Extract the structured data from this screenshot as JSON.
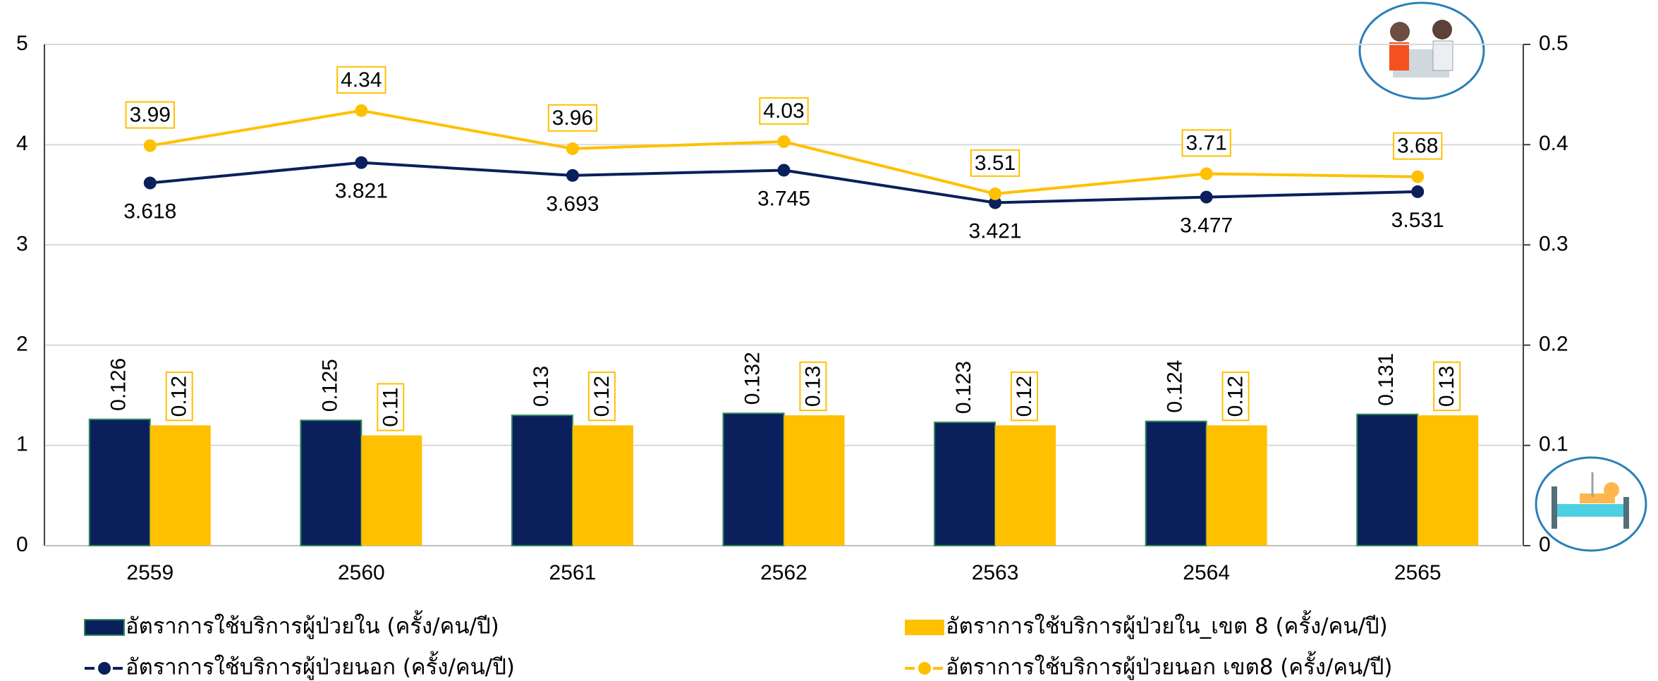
{
  "chart_data": {
    "type": "combo",
    "categories": [
      "2559",
      "2560",
      "2561",
      "2562",
      "2563",
      "2564",
      "2565"
    ],
    "ylim": [
      0,
      5
    ],
    "yticks": [
      0,
      1,
      2,
      3,
      4,
      5
    ],
    "y2lim": [
      0,
      0.5
    ],
    "y2ticks": [
      0,
      0.1,
      0.2,
      0.3,
      0.4,
      0.5
    ],
    "grid": true,
    "series": [
      {
        "name": "อัตราการใช้บริการผู้ป่วยใน (ครั้ง/คน/ปี)",
        "type": "bar",
        "axis": "y2",
        "color": "#0a1f5c",
        "values": [
          0.126,
          0.125,
          0.13,
          0.132,
          0.123,
          0.124,
          0.131
        ]
      },
      {
        "name": "อัตราการใช้บริการผู้ป่วยใน_เขต 8 (ครั้ง/คน/ปี)",
        "type": "bar",
        "axis": "y2",
        "color": "#ffc000",
        "values": [
          0.12,
          0.11,
          0.12,
          0.13,
          0.12,
          0.12,
          0.13
        ]
      },
      {
        "name": "อัตราการใช้บริการผู้ป่วยนอก (ครั้ง/คน/ปี)",
        "type": "line",
        "color": "#0a1f5c",
        "values": [
          3.618,
          3.821,
          3.693,
          3.745,
          3.421,
          3.477,
          3.531
        ]
      },
      {
        "name": "อัตราการใช้บริการผู้ป่วยนอก เขต8 (ครั้ง/คน/ปี)",
        "type": "line",
        "color": "#ffc000",
        "values": [
          3.99,
          4.34,
          3.96,
          4.03,
          3.51,
          3.71,
          3.68
        ]
      }
    ]
  }
}
